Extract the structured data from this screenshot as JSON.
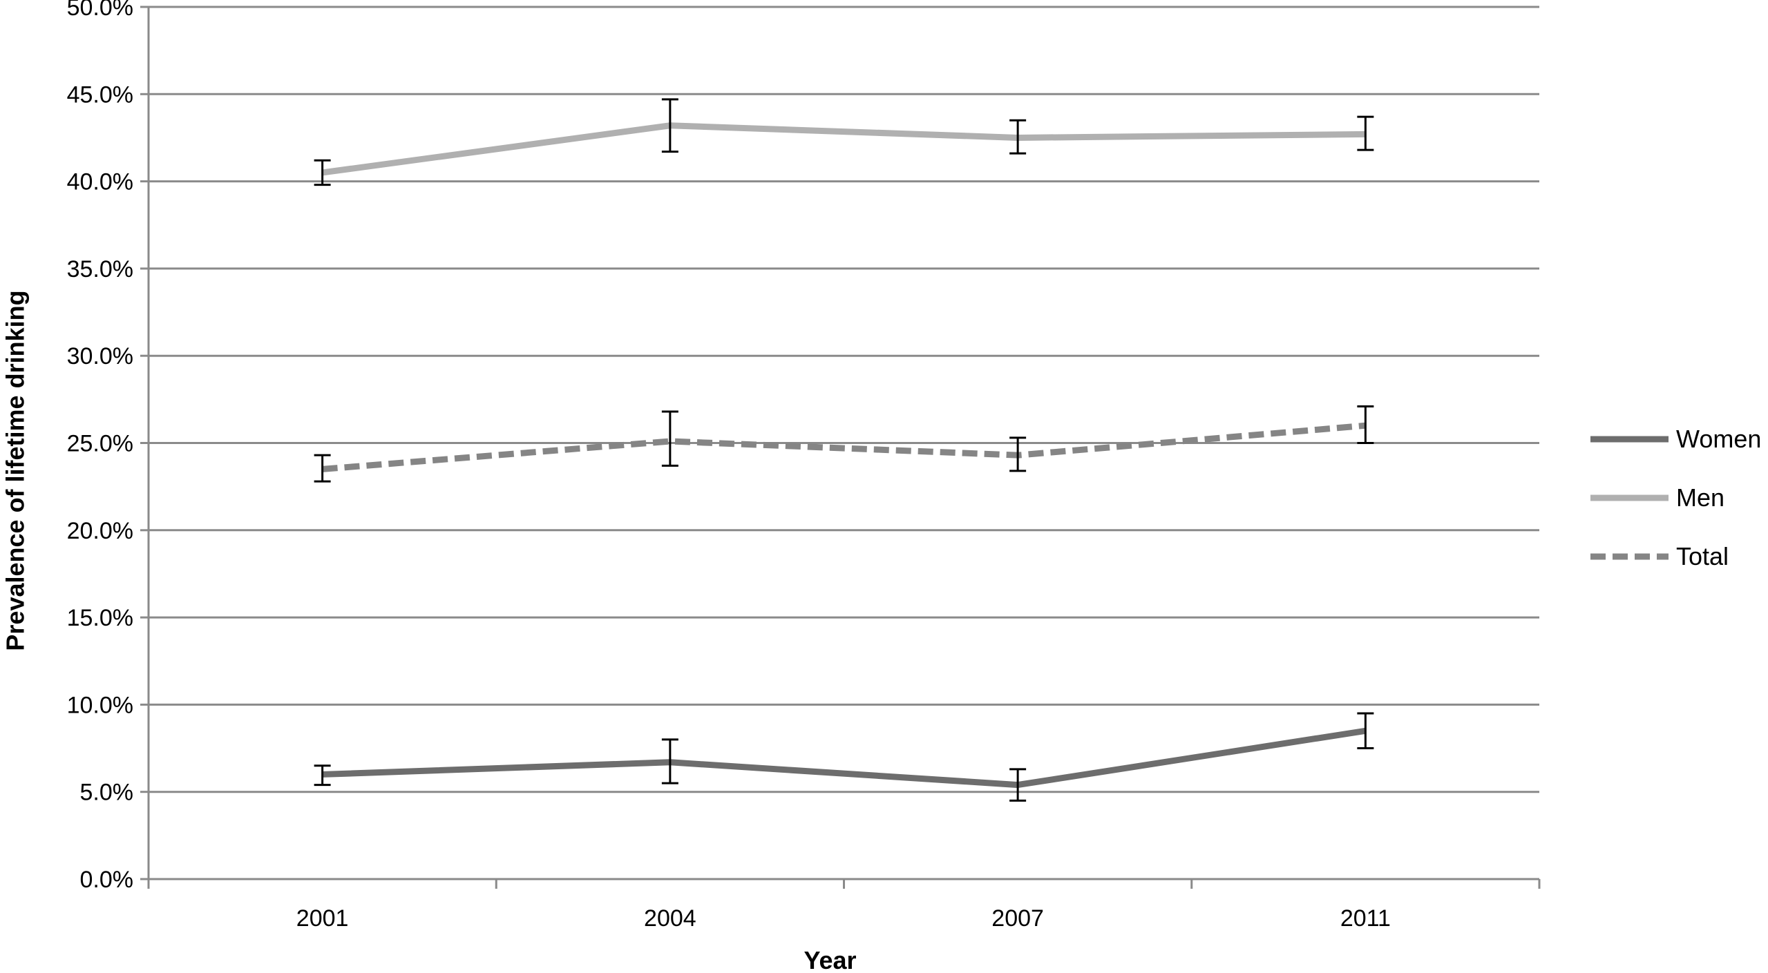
{
  "chart_data": {
    "type": "line",
    "categories": [
      "2001",
      "2004",
      "2007",
      "2011"
    ],
    "series": [
      {
        "name": "Women",
        "values": [
          6.0,
          6.7,
          5.4,
          8.5
        ],
        "err_low": [
          5.4,
          5.5,
          4.5,
          7.5
        ],
        "err_high": [
          6.5,
          8.0,
          6.3,
          9.5
        ],
        "color": "#6d6d6d",
        "dash": "solid"
      },
      {
        "name": "Men",
        "values": [
          40.5,
          43.2,
          42.5,
          42.7
        ],
        "err_low": [
          39.8,
          41.7,
          41.6,
          41.8
        ],
        "err_high": [
          41.2,
          44.7,
          43.5,
          43.7
        ],
        "color": "#b0b0b0",
        "dash": "solid"
      },
      {
        "name": "Total",
        "values": [
          23.5,
          25.1,
          24.3,
          26.0
        ],
        "err_low": [
          22.8,
          23.7,
          23.4,
          25.0
        ],
        "err_high": [
          24.3,
          26.8,
          25.3,
          27.1
        ],
        "color": "#858585",
        "dash": "dashed"
      }
    ],
    "title": "",
    "xlabel": "Year",
    "ylabel": "Prevalence of lifetime drinking",
    "ylim": [
      0,
      50
    ],
    "yticks": [
      "0.0%",
      "5.0%",
      "10.0%",
      "15.0%",
      "20.0%",
      "25.0%",
      "30.0%",
      "35.0%",
      "40.0%",
      "45.0%",
      "50.0%"
    ],
    "grid": true,
    "legend": "right"
  }
}
